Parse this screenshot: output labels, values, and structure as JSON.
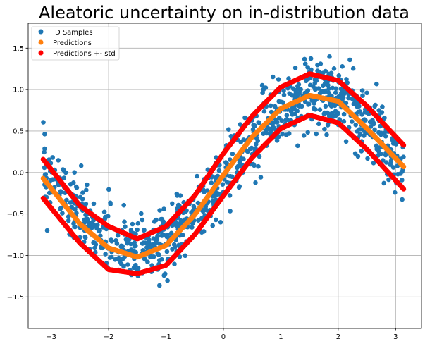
{
  "chart_data": {
    "type": "scatter",
    "title": "Aleatoric uncertainty on in-distribution data",
    "xlabel": "",
    "ylabel": "",
    "xlim": [
      -3.4,
      3.45
    ],
    "ylim": [
      -1.88,
      1.8
    ],
    "xticks": [
      -3,
      -2,
      -1,
      0,
      1,
      2,
      3
    ],
    "yticks": [
      -1.5,
      -1.0,
      -0.5,
      0.0,
      0.5,
      1.0,
      1.5
    ],
    "xtick_labels": [
      "−3",
      "−2",
      "−1",
      "0",
      "1",
      "2",
      "3"
    ],
    "ytick_labels": [
      "−1.5",
      "−1.0",
      "−0.5",
      "0.0",
      "0.5",
      "1.0",
      "1.5"
    ],
    "grid": true,
    "legend_position": "top-left",
    "legend": [
      "ID Samples",
      "Predictions",
      "Predictions +- std"
    ],
    "colors": {
      "samples": "#1f77b4",
      "predictions": "#ff7f0e",
      "std": "#ff0000"
    },
    "series": [
      {
        "name": "ID Samples",
        "kind": "scatter",
        "x_range": [
          -3.14,
          3.14
        ],
        "count": 1000,
        "model": "y = 0.95*sin(x - 0.07) + N(0, 0.2)"
      },
      {
        "name": "Predictions",
        "kind": "curve",
        "x": [
          -3.14,
          -2.5,
          -2.0,
          -1.5,
          -1.0,
          -0.5,
          0.0,
          0.5,
          1.0,
          1.5,
          2.0,
          2.5,
          3.14
        ],
        "y": [
          -0.07,
          -0.62,
          -0.91,
          -1.02,
          -0.88,
          -0.51,
          -0.03,
          0.43,
          0.77,
          0.93,
          0.86,
          0.53,
          0.07
        ]
      },
      {
        "name": "Predictions +- std",
        "kind": "band",
        "upper": {
          "x": [
            -3.14,
            -2.5,
            -2.0,
            -1.5,
            -1.0,
            -0.5,
            0.0,
            0.5,
            1.0,
            1.5,
            2.0,
            2.5,
            3.14
          ],
          "y": [
            0.16,
            -0.4,
            -0.65,
            -0.8,
            -0.65,
            -0.28,
            0.23,
            0.68,
            1.03,
            1.19,
            1.11,
            0.8,
            0.33
          ]
        },
        "lower": {
          "x": [
            -3.14,
            -2.5,
            -2.0,
            -1.5,
            -1.0,
            -0.5,
            0.0,
            0.5,
            1.0,
            1.5,
            2.0,
            2.5,
            3.14
          ],
          "y": [
            -0.31,
            -0.85,
            -1.17,
            -1.22,
            -1.12,
            -0.75,
            -0.28,
            0.18,
            0.53,
            0.69,
            0.6,
            0.28,
            -0.2
          ]
        }
      }
    ]
  }
}
